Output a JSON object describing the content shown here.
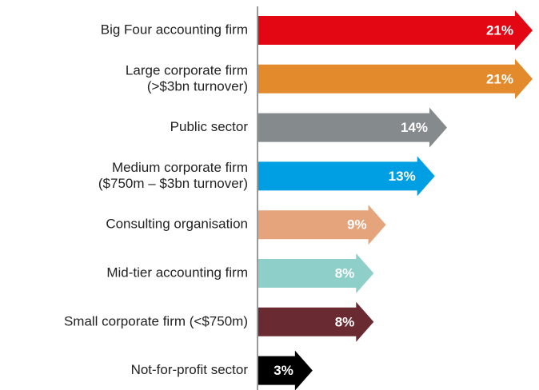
{
  "chart_data": {
    "type": "bar",
    "categories": [
      [
        "Big Four accounting firm"
      ],
      [
        "Large corporate firm",
        "(>$3bn turnover)"
      ],
      [
        "Public sector"
      ],
      [
        "Medium corporate firm",
        "($750m – $3bn turnover)"
      ],
      [
        "Consulting organisation"
      ],
      [
        "Mid-tier accounting firm"
      ],
      [
        "Small corporate firm (<$750m)"
      ],
      [
        "Not-for-profit sector"
      ]
    ],
    "values": [
      21,
      21,
      14,
      13,
      9,
      8,
      8,
      3
    ],
    "value_labels": [
      "21%",
      "21%",
      "14%",
      "13%",
      "9%",
      "8%",
      "8%",
      "3%"
    ],
    "colors": [
      "#e30613",
      "#e38b2c",
      "#858a8c",
      "#009fe3",
      "#e5a47c",
      "#8ecfc9",
      "#6a2a32",
      "#000000"
    ]
  }
}
